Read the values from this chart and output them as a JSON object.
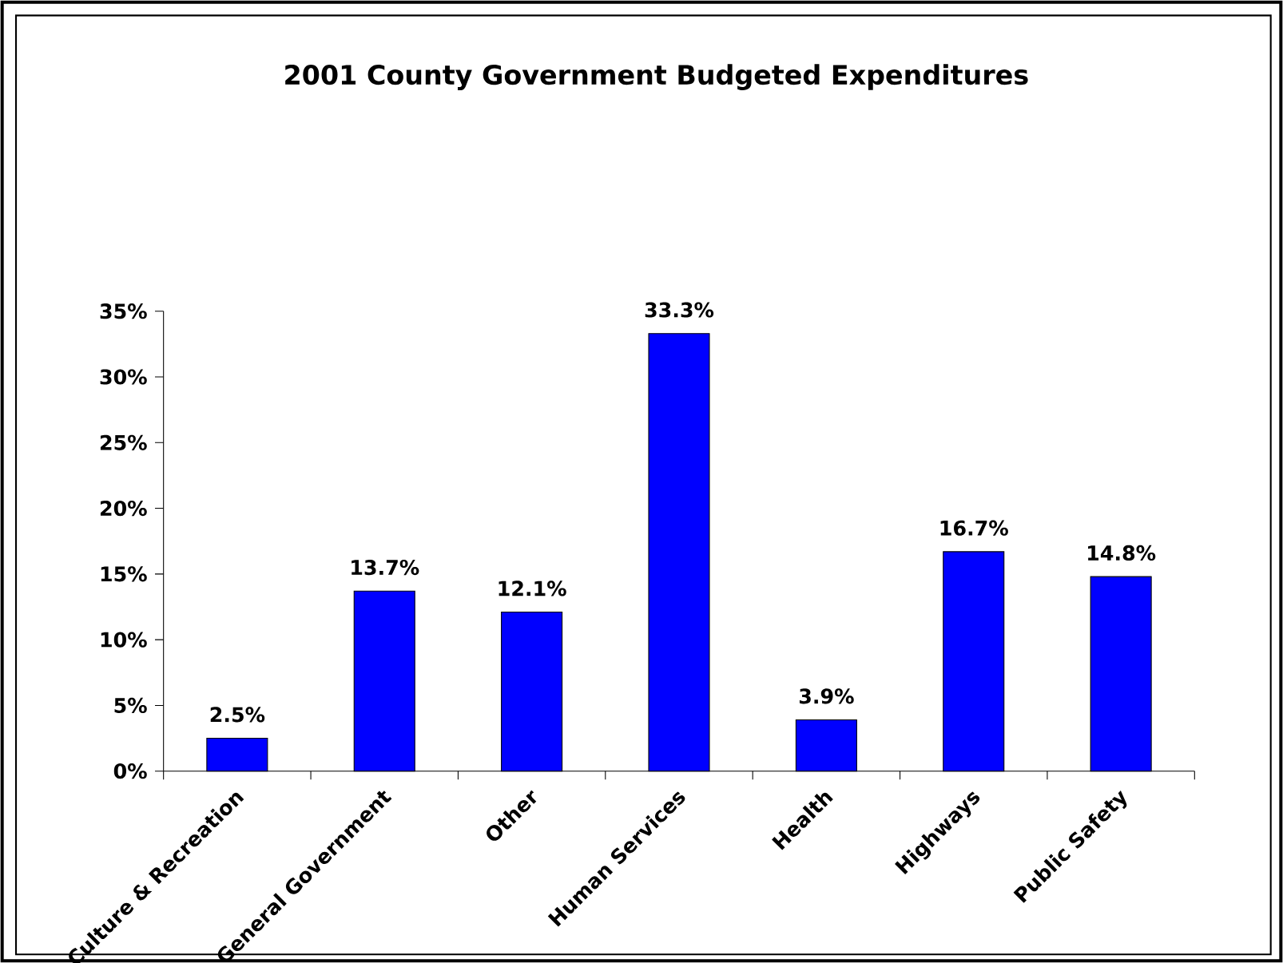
{
  "chart_data": {
    "type": "bar",
    "title": "2001 County Government Budgeted Expenditures",
    "categories": [
      "Culture & Recreation",
      "General Government",
      "Other",
      "Human Services",
      "Health",
      "Highways",
      "Public Safety"
    ],
    "values": [
      2.5,
      13.7,
      12.1,
      33.3,
      3.9,
      16.7,
      14.8
    ],
    "value_labels": [
      "2.5%",
      "13.7%",
      "12.1%",
      "33.3%",
      "3.9%",
      "16.7%",
      "14.8%"
    ],
    "color": "#0000ff",
    "ylim": [
      0,
      35
    ],
    "yticks": [
      {
        "value": 0,
        "label": "0%"
      },
      {
        "value": 5,
        "label": "5%"
      },
      {
        "value": 10,
        "label": "10%"
      },
      {
        "value": 15,
        "label": "15%"
      },
      {
        "value": 20,
        "label": "20%"
      },
      {
        "value": 25,
        "label": "25%"
      },
      {
        "value": 30,
        "label": "30%"
      },
      {
        "value": 35,
        "label": "35%"
      }
    ],
    "grid": false
  }
}
